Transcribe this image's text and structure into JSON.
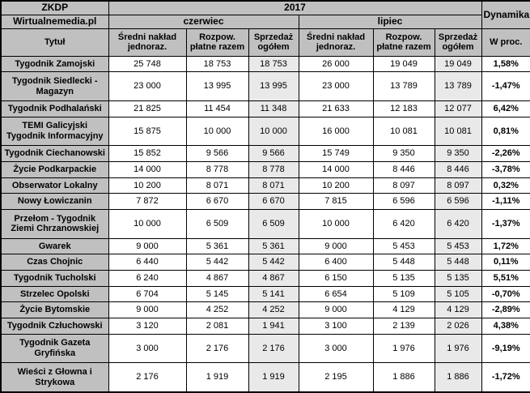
{
  "chart_data": {
    "type": "table",
    "header": {
      "org": "ZKDP",
      "year": "2017",
      "source": "Wirtualnemedia.pl",
      "month_groups": [
        "czerwiec",
        "lipiec"
      ],
      "dynamics_label": "Dynamika",
      "title_column": "Tytuł",
      "metric_columns": [
        "Średni nakład jednoraz.",
        "Rozpow. płatne razem",
        "Sprzedaż ogółem"
      ],
      "dynamics_unit": "W proc."
    },
    "rows": [
      {
        "title": "Tygodnik Zamojski",
        "czerwiec": [
          "25 748",
          "18 753",
          "18 753"
        ],
        "lipiec": [
          "26 000",
          "19 049",
          "19 049"
        ],
        "dynamika": "1,58%"
      },
      {
        "title": "Tygodnik Siedlecki - Magazyn",
        "czerwiec": [
          "23 000",
          "13 995",
          "13 995"
        ],
        "lipiec": [
          "23 000",
          "13 789",
          "13 789"
        ],
        "dynamika": "-1,47%"
      },
      {
        "title": "Tygodnik Podhalański",
        "czerwiec": [
          "21 825",
          "11 454",
          "11 348"
        ],
        "lipiec": [
          "21 633",
          "12 183",
          "12 077"
        ],
        "dynamika": "6,42%"
      },
      {
        "title": "TEMI Galicyjski Tygodnik Informacyjny",
        "czerwiec": [
          "15 875",
          "10 000",
          "10 000"
        ],
        "lipiec": [
          "16 000",
          "10 081",
          "10 081"
        ],
        "dynamika": "0,81%"
      },
      {
        "title": "Tygodnik Ciechanowski",
        "czerwiec": [
          "15 852",
          "9 566",
          "9 566"
        ],
        "lipiec": [
          "15 749",
          "9 350",
          "9 350"
        ],
        "dynamika": "-2,26%"
      },
      {
        "title": "Życie Podkarpackie",
        "czerwiec": [
          "14 000",
          "8 778",
          "8 778"
        ],
        "lipiec": [
          "14 000",
          "8 446",
          "8 446"
        ],
        "dynamika": "-3,78%"
      },
      {
        "title": "Obserwator Lokalny",
        "czerwiec": [
          "10 200",
          "8 071",
          "8 071"
        ],
        "lipiec": [
          "10 200",
          "8 097",
          "8 097"
        ],
        "dynamika": "0,32%"
      },
      {
        "title": "Nowy Łowiczanin",
        "czerwiec": [
          "7 872",
          "6 670",
          "6 670"
        ],
        "lipiec": [
          "7 815",
          "6 596",
          "6 596"
        ],
        "dynamika": "-1,11%"
      },
      {
        "title": "Przełom - Tygodnik Ziemi Chrzanowskiej",
        "czerwiec": [
          "10 000",
          "6 509",
          "6 509"
        ],
        "lipiec": [
          "10 000",
          "6 420",
          "6 420"
        ],
        "dynamika": "-1,37%"
      },
      {
        "title": "Gwarek",
        "czerwiec": [
          "9 000",
          "5 361",
          "5 361"
        ],
        "lipiec": [
          "9 000",
          "5 453",
          "5 453"
        ],
        "dynamika": "1,72%"
      },
      {
        "title": "Czas Chojnic",
        "czerwiec": [
          "6 440",
          "5 442",
          "5 442"
        ],
        "lipiec": [
          "6 400",
          "5 448",
          "5 448"
        ],
        "dynamika": "0,11%"
      },
      {
        "title": "Tygodnik Tucholski",
        "czerwiec": [
          "6 240",
          "4 867",
          "4 867"
        ],
        "lipiec": [
          "6 150",
          "5 135",
          "5 135"
        ],
        "dynamika": "5,51%"
      },
      {
        "title": "Strzelec Opolski",
        "czerwiec": [
          "6 704",
          "5 145",
          "5 141"
        ],
        "lipiec": [
          "6 654",
          "5 109",
          "5 105"
        ],
        "dynamika": "-0,70%"
      },
      {
        "title": "Życie Bytomskie",
        "czerwiec": [
          "9 000",
          "4 252",
          "4 252"
        ],
        "lipiec": [
          "9 000",
          "4 129",
          "4 129"
        ],
        "dynamika": "-2,89%"
      },
      {
        "title": "Tygodnik Człuchowski",
        "czerwiec": [
          "3 120",
          "2 081",
          "1 941"
        ],
        "lipiec": [
          "3 100",
          "2 139",
          "2 026"
        ],
        "dynamika": "4,38%"
      },
      {
        "title": "Tygodnik Gazeta Gryfińska",
        "czerwiec": [
          "3 000",
          "2 176",
          "2 176"
        ],
        "lipiec": [
          "3 000",
          "1 976",
          "1 976"
        ],
        "dynamika": "-9,19%"
      },
      {
        "title": "Wieści z Głowna i Strykowa",
        "czerwiec": [
          "2 176",
          "1 919",
          "1 919"
        ],
        "lipiec": [
          "2 195",
          "1 886",
          "1 886"
        ],
        "dynamika": "-1,72%"
      }
    ]
  },
  "colors": {
    "header_bg": "#c0c0c0",
    "shaded_col_bg": "#e9e9e9",
    "border": "#000000"
  }
}
